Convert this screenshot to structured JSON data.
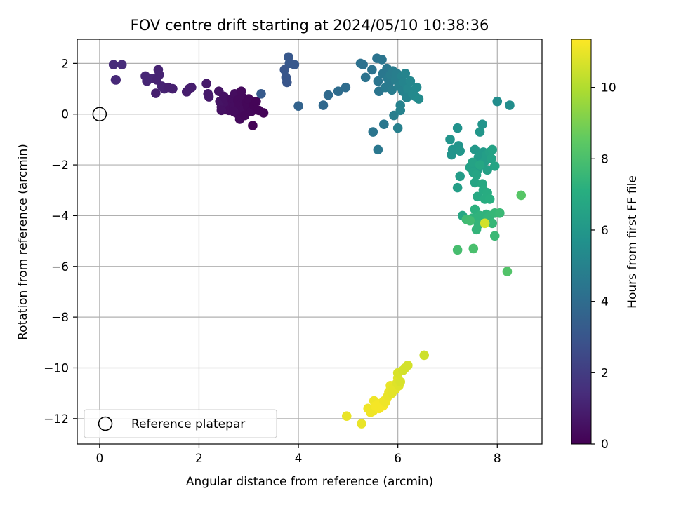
{
  "chart_data": {
    "type": "scatter",
    "title": "FOV centre drift starting at 2024/05/10 10:38:36",
    "xlabel": "Angular distance from reference (arcmin)",
    "ylabel": "Rotation from reference (arcmin)",
    "xlim": [
      -0.45,
      8.9
    ],
    "ylim": [
      -13.0,
      2.95
    ],
    "xticks": [
      "0",
      "2",
      "4",
      "6",
      "8"
    ],
    "yticks": [
      "2",
      "0",
      "−2",
      "−4",
      "−6",
      "−8",
      "−10",
      "−12"
    ],
    "grid": true,
    "colormap": "viridis",
    "colorbar": {
      "label": "Hours from first FF file",
      "range": [
        0,
        11.35
      ],
      "ticks": [
        "0",
        "2",
        "4",
        "6",
        "8",
        "10"
      ]
    },
    "legend": {
      "position": "lower-left",
      "entries": [
        {
          "label": "Reference platepar",
          "marker": "open-circle"
        }
      ]
    },
    "reference_point": {
      "x": 0,
      "y": 0
    },
    "points": [
      {
        "x": 0.28,
        "y": 1.95,
        "h": 1.4
      },
      {
        "x": 0.45,
        "y": 1.95,
        "h": 1.4
      },
      {
        "x": 0.32,
        "y": 1.35,
        "h": 1.3
      },
      {
        "x": 0.33,
        "y": 1.35,
        "h": 1.3
      },
      {
        "x": 0.92,
        "y": 1.5,
        "h": 1.2
      },
      {
        "x": 0.95,
        "y": 1.3,
        "h": 1.2
      },
      {
        "x": 1.05,
        "y": 1.4,
        "h": 1.2
      },
      {
        "x": 1.18,
        "y": 1.75,
        "h": 1.1
      },
      {
        "x": 1.2,
        "y": 1.55,
        "h": 1.1
      },
      {
        "x": 1.15,
        "y": 1.35,
        "h": 1.1
      },
      {
        "x": 1.25,
        "y": 1.1,
        "h": 1.1
      },
      {
        "x": 1.3,
        "y": 1.0,
        "h": 1.1
      },
      {
        "x": 1.13,
        "y": 0.82,
        "h": 1.0
      },
      {
        "x": 1.38,
        "y": 1.05,
        "h": 1.0
      },
      {
        "x": 1.47,
        "y": 1.0,
        "h": 1.0
      },
      {
        "x": 1.75,
        "y": 0.88,
        "h": 0.9
      },
      {
        "x": 1.8,
        "y": 1.0,
        "h": 0.9
      },
      {
        "x": 1.85,
        "y": 1.05,
        "h": 0.9
      },
      {
        "x": 2.15,
        "y": 1.2,
        "h": 0.8
      },
      {
        "x": 2.18,
        "y": 0.8,
        "h": 0.8
      },
      {
        "x": 2.2,
        "y": 0.68,
        "h": 0.8
      },
      {
        "x": 2.4,
        "y": 0.9,
        "h": 0.6
      },
      {
        "x": 2.42,
        "y": 0.5,
        "h": 0.6
      },
      {
        "x": 2.45,
        "y": 0.28,
        "h": 0.6
      },
      {
        "x": 2.5,
        "y": 0.7,
        "h": 0.5
      },
      {
        "x": 2.55,
        "y": 0.55,
        "h": 0.5
      },
      {
        "x": 2.58,
        "y": 0.3,
        "h": 0.5
      },
      {
        "x": 2.6,
        "y": 0.15,
        "h": 0.4
      },
      {
        "x": 2.65,
        "y": 0.6,
        "h": 0.4
      },
      {
        "x": 2.68,
        "y": 0.45,
        "h": 0.4
      },
      {
        "x": 2.7,
        "y": 0.3,
        "h": 0.4
      },
      {
        "x": 2.72,
        "y": 0.8,
        "h": 0.4
      },
      {
        "x": 2.75,
        "y": 0.05,
        "h": 0.3
      },
      {
        "x": 2.78,
        "y": 0.55,
        "h": 0.3
      },
      {
        "x": 2.8,
        "y": 0.35,
        "h": 0.3
      },
      {
        "x": 2.82,
        "y": -0.2,
        "h": 0.3
      },
      {
        "x": 2.85,
        "y": 0.9,
        "h": 0.3
      },
      {
        "x": 2.88,
        "y": 0.65,
        "h": 0.3
      },
      {
        "x": 2.9,
        "y": 0.2,
        "h": 0.3
      },
      {
        "x": 2.92,
        "y": -0.05,
        "h": 0.2
      },
      {
        "x": 2.95,
        "y": 0.45,
        "h": 0.2
      },
      {
        "x": 2.98,
        "y": 0.3,
        "h": 0.2
      },
      {
        "x": 3.0,
        "y": 0.6,
        "h": 0.2
      },
      {
        "x": 3.05,
        "y": 0.1,
        "h": 0.2
      },
      {
        "x": 3.08,
        "y": -0.45,
        "h": 0.1
      },
      {
        "x": 3.1,
        "y": 0.35,
        "h": 0.1
      },
      {
        "x": 3.15,
        "y": 0.5,
        "h": 0.1
      },
      {
        "x": 3.2,
        "y": 0.15,
        "h": 0.1
      },
      {
        "x": 3.3,
        "y": 0.05,
        "h": 0.1
      },
      {
        "x": 3.25,
        "y": 0.8,
        "h": 3.2
      },
      {
        "x": 2.45,
        "y": 0.15,
        "h": 0.5
      },
      {
        "x": 2.7,
        "y": 0.1,
        "h": 0.35
      },
      {
        "x": 3.72,
        "y": 1.75,
        "h": 3.0
      },
      {
        "x": 3.75,
        "y": 1.45,
        "h": 3.0
      },
      {
        "x": 3.77,
        "y": 1.25,
        "h": 3.0
      },
      {
        "x": 3.8,
        "y": 2.25,
        "h": 3.1
      },
      {
        "x": 3.82,
        "y": 2.0,
        "h": 3.1
      },
      {
        "x": 3.92,
        "y": 1.95,
        "h": 3.1
      },
      {
        "x": 4.0,
        "y": 0.32,
        "h": 3.6
      },
      {
        "x": 4.5,
        "y": 0.35,
        "h": 3.8
      },
      {
        "x": 4.6,
        "y": 0.75,
        "h": 3.9
      },
      {
        "x": 4.8,
        "y": 0.9,
        "h": 4.0
      },
      {
        "x": 4.95,
        "y": 1.05,
        "h": 4.0
      },
      {
        "x": 5.25,
        "y": 2.0,
        "h": 4.2
      },
      {
        "x": 5.3,
        "y": 1.95,
        "h": 4.2
      },
      {
        "x": 5.35,
        "y": 1.45,
        "h": 4.3
      },
      {
        "x": 5.48,
        "y": 1.75,
        "h": 4.3
      },
      {
        "x": 5.5,
        "y": -0.7,
        "h": 4.4
      },
      {
        "x": 5.58,
        "y": 2.2,
        "h": 4.3
      },
      {
        "x": 5.6,
        "y": 1.3,
        "h": 4.4
      },
      {
        "x": 5.62,
        "y": 0.9,
        "h": 4.4
      },
      {
        "x": 5.6,
        "y": -1.4,
        "h": 4.5
      },
      {
        "x": 5.68,
        "y": 2.15,
        "h": 4.4
      },
      {
        "x": 5.7,
        "y": 1.6,
        "h": 4.5
      },
      {
        "x": 5.72,
        "y": -0.4,
        "h": 4.5
      },
      {
        "x": 5.75,
        "y": 1.05,
        "h": 4.6
      },
      {
        "x": 5.78,
        "y": 1.8,
        "h": 4.5
      },
      {
        "x": 5.8,
        "y": 1.4,
        "h": 4.6
      },
      {
        "x": 5.82,
        "y": 1.2,
        "h": 4.6
      },
      {
        "x": 5.85,
        "y": 1.55,
        "h": 4.7
      },
      {
        "x": 5.88,
        "y": 0.95,
        "h": 4.7
      },
      {
        "x": 5.9,
        "y": 1.7,
        "h": 4.7
      },
      {
        "x": 5.92,
        "y": -0.05,
        "h": 4.8
      },
      {
        "x": 5.95,
        "y": 1.35,
        "h": 4.8
      },
      {
        "x": 5.98,
        "y": 1.6,
        "h": 4.8
      },
      {
        "x": 6.0,
        "y": -0.55,
        "h": 4.9
      },
      {
        "x": 6.02,
        "y": 1.1,
        "h": 4.9
      },
      {
        "x": 6.05,
        "y": 0.35,
        "h": 5.0
      },
      {
        "x": 6.08,
        "y": 1.5,
        "h": 5.0
      },
      {
        "x": 6.1,
        "y": 0.9,
        "h": 5.0
      },
      {
        "x": 6.12,
        "y": 1.25,
        "h": 5.1
      },
      {
        "x": 6.15,
        "y": 1.6,
        "h": 5.1
      },
      {
        "x": 6.18,
        "y": 0.65,
        "h": 5.1
      },
      {
        "x": 6.2,
        "y": 1.0,
        "h": 5.2
      },
      {
        "x": 6.25,
        "y": 1.3,
        "h": 5.2
      },
      {
        "x": 6.3,
        "y": 0.8,
        "h": 5.3
      },
      {
        "x": 6.35,
        "y": 0.7,
        "h": 5.3
      },
      {
        "x": 6.38,
        "y": 1.05,
        "h": 5.3
      },
      {
        "x": 6.42,
        "y": 0.6,
        "h": 5.4
      },
      {
        "x": 6.05,
        "y": 0.15,
        "h": 5.0
      },
      {
        "x": 7.05,
        "y": -1.0,
        "h": 5.8
      },
      {
        "x": 7.08,
        "y": -1.6,
        "h": 5.8
      },
      {
        "x": 7.1,
        "y": -1.4,
        "h": 5.8
      },
      {
        "x": 7.2,
        "y": -0.55,
        "h": 5.7
      },
      {
        "x": 7.22,
        "y": -1.25,
        "h": 5.8
      },
      {
        "x": 7.25,
        "y": -1.45,
        "h": 5.9
      },
      {
        "x": 7.2,
        "y": -2.9,
        "h": 6.3
      },
      {
        "x": 7.25,
        "y": -2.45,
        "h": 6.2
      },
      {
        "x": 7.3,
        "y": -4.0,
        "h": 6.7
      },
      {
        "x": 7.55,
        "y": -1.4,
        "h": 6.0
      },
      {
        "x": 7.6,
        "y": -2.2,
        "h": 6.2
      },
      {
        "x": 7.62,
        "y": -1.7,
        "h": 6.1
      },
      {
        "x": 7.65,
        "y": -0.7,
        "h": 5.9
      },
      {
        "x": 7.68,
        "y": -2.0,
        "h": 6.2
      },
      {
        "x": 7.7,
        "y": -0.4,
        "h": 5.8
      },
      {
        "x": 7.72,
        "y": -1.5,
        "h": 6.1
      },
      {
        "x": 7.75,
        "y": -1.85,
        "h": 6.3
      },
      {
        "x": 7.78,
        "y": -1.6,
        "h": 6.3
      },
      {
        "x": 7.8,
        "y": -2.2,
        "h": 6.4
      },
      {
        "x": 7.85,
        "y": -1.5,
        "h": 6.4
      },
      {
        "x": 7.88,
        "y": -1.75,
        "h": 6.5
      },
      {
        "x": 7.9,
        "y": -1.4,
        "h": 6.5
      },
      {
        "x": 7.95,
        "y": -2.05,
        "h": 6.6
      },
      {
        "x": 8.0,
        "y": 0.5,
        "h": 5.5
      },
      {
        "x": 8.25,
        "y": 0.35,
        "h": 5.5
      },
      {
        "x": 7.45,
        "y": -2.1,
        "h": 6.4
      },
      {
        "x": 7.5,
        "y": -1.9,
        "h": 6.5
      },
      {
        "x": 7.52,
        "y": -2.3,
        "h": 6.5
      },
      {
        "x": 7.55,
        "y": -2.7,
        "h": 6.6
      },
      {
        "x": 7.58,
        "y": -2.4,
        "h": 6.6
      },
      {
        "x": 7.6,
        "y": -3.25,
        "h": 6.8
      },
      {
        "x": 7.65,
        "y": -2.0,
        "h": 6.7
      },
      {
        "x": 7.7,
        "y": -2.75,
        "h": 6.8
      },
      {
        "x": 7.72,
        "y": -3.0,
        "h": 6.9
      },
      {
        "x": 7.75,
        "y": -3.35,
        "h": 7.0
      },
      {
        "x": 7.8,
        "y": -3.1,
        "h": 7.0
      },
      {
        "x": 7.85,
        "y": -3.35,
        "h": 7.1
      },
      {
        "x": 7.5,
        "y": -4.1,
        "h": 7.3
      },
      {
        "x": 7.55,
        "y": -3.75,
        "h": 7.2
      },
      {
        "x": 7.58,
        "y": -4.55,
        "h": 7.4
      },
      {
        "x": 7.62,
        "y": -4.35,
        "h": 7.4
      },
      {
        "x": 7.65,
        "y": -4.0,
        "h": 7.3
      },
      {
        "x": 7.78,
        "y": -3.95,
        "h": 7.3
      },
      {
        "x": 7.8,
        "y": -4.1,
        "h": 7.4
      },
      {
        "x": 7.85,
        "y": -4.0,
        "h": 7.4
      },
      {
        "x": 7.9,
        "y": -4.3,
        "h": 7.5
      },
      {
        "x": 7.95,
        "y": -3.9,
        "h": 7.5
      },
      {
        "x": 8.05,
        "y": -3.9,
        "h": 7.6
      },
      {
        "x": 7.95,
        "y": -4.8,
        "h": 7.6
      },
      {
        "x": 7.38,
        "y": -4.15,
        "h": 7.7
      },
      {
        "x": 7.45,
        "y": -4.2,
        "h": 7.8
      },
      {
        "x": 7.2,
        "y": -5.35,
        "h": 7.9
      },
      {
        "x": 7.52,
        "y": -5.3,
        "h": 8.0
      },
      {
        "x": 8.2,
        "y": -6.2,
        "h": 8.2
      },
      {
        "x": 8.48,
        "y": -3.2,
        "h": 8.3
      },
      {
        "x": 7.75,
        "y": -4.3,
        "h": 10.6
      },
      {
        "x": 4.97,
        "y": -11.9,
        "h": 11.0
      },
      {
        "x": 5.27,
        "y": -12.2,
        "h": 11.0
      },
      {
        "x": 5.4,
        "y": -11.6,
        "h": 11.1
      },
      {
        "x": 5.45,
        "y": -11.75,
        "h": 11.1
      },
      {
        "x": 5.5,
        "y": -11.7,
        "h": 11.1
      },
      {
        "x": 5.52,
        "y": -11.3,
        "h": 11.1
      },
      {
        "x": 5.55,
        "y": -11.5,
        "h": 11.2
      },
      {
        "x": 5.6,
        "y": -11.45,
        "h": 11.2
      },
      {
        "x": 5.62,
        "y": -11.6,
        "h": 11.2
      },
      {
        "x": 5.65,
        "y": -11.4,
        "h": 11.2
      },
      {
        "x": 5.7,
        "y": -11.5,
        "h": 11.2
      },
      {
        "x": 5.72,
        "y": -11.3,
        "h": 11.1
      },
      {
        "x": 5.75,
        "y": -11.35,
        "h": 11.1
      },
      {
        "x": 5.78,
        "y": -11.2,
        "h": 11.1
      },
      {
        "x": 5.8,
        "y": -11.1,
        "h": 11.0
      },
      {
        "x": 5.82,
        "y": -10.95,
        "h": 11.0
      },
      {
        "x": 5.85,
        "y": -10.7,
        "h": 11.0
      },
      {
        "x": 5.88,
        "y": -11.0,
        "h": 10.9
      },
      {
        "x": 5.9,
        "y": -10.8,
        "h": 10.9
      },
      {
        "x": 5.95,
        "y": -10.85,
        "h": 10.9
      },
      {
        "x": 5.98,
        "y": -10.6,
        "h": 10.8
      },
      {
        "x": 6.0,
        "y": -10.4,
        "h": 10.8
      },
      {
        "x": 6.02,
        "y": -10.7,
        "h": 10.8
      },
      {
        "x": 6.05,
        "y": -10.55,
        "h": 10.7
      },
      {
        "x": 6.0,
        "y": -10.2,
        "h": 10.7
      },
      {
        "x": 6.1,
        "y": -10.1,
        "h": 10.6
      },
      {
        "x": 6.15,
        "y": -10.0,
        "h": 10.6
      },
      {
        "x": 6.2,
        "y": -9.9,
        "h": 10.6
      },
      {
        "x": 6.53,
        "y": -9.5,
        "h": 10.5
      }
    ]
  }
}
